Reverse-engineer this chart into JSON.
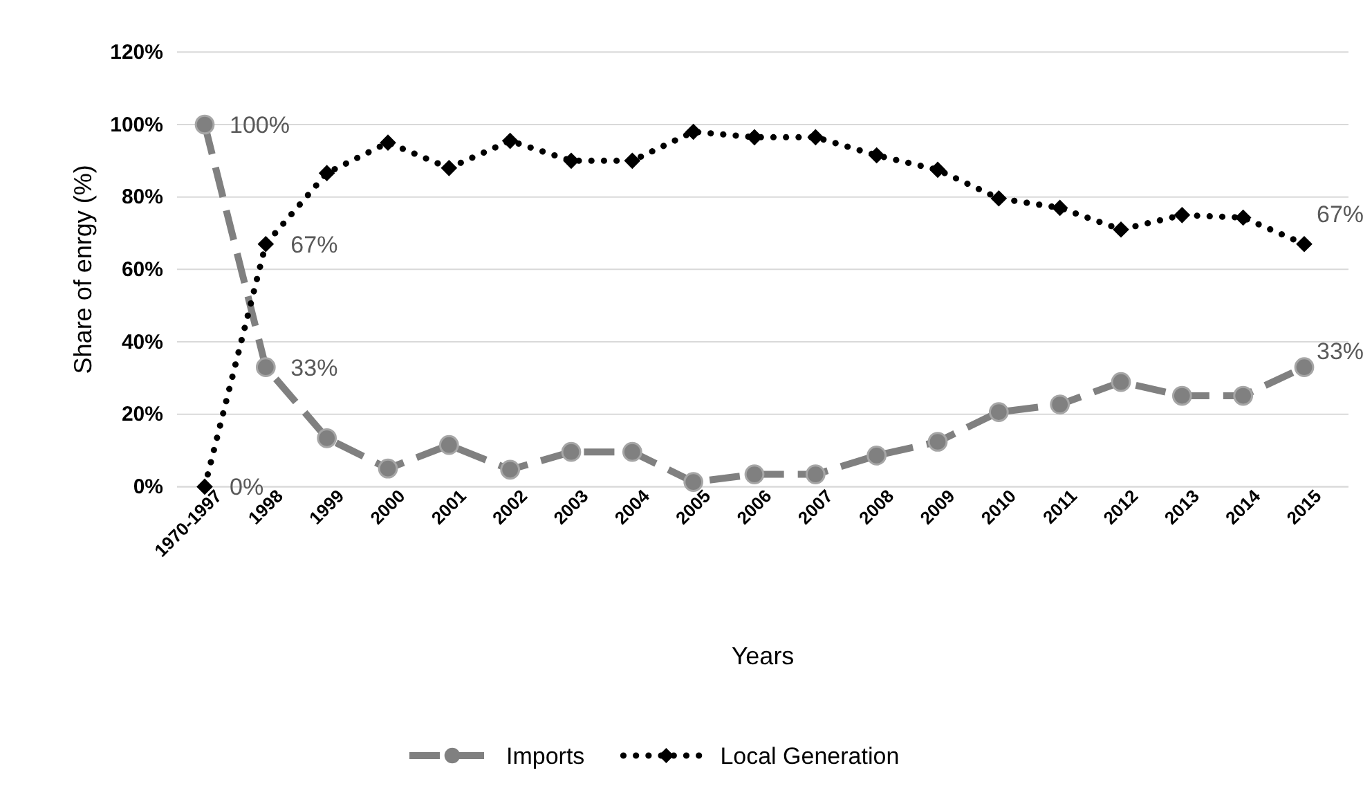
{
  "chart_data": {
    "type": "line",
    "xlabel": "Years",
    "ylabel": "Share of enrgy (%)",
    "categories": [
      "1970-1997",
      "1998",
      "1999",
      "2000",
      "2001",
      "2002",
      "2003",
      "2004",
      "2005",
      "2006",
      "2007",
      "2008",
      "2009",
      "2010",
      "2011",
      "2012",
      "2013",
      "2014",
      "2015"
    ],
    "series": [
      {
        "name": "Imports",
        "color": "#808080",
        "marker": "circle",
        "line_style": "dashed",
        "values": [
          100,
          33,
          13.4,
          5,
          11.5,
          4.7,
          9.6,
          9.6,
          1.3,
          3.4,
          3.4,
          8.6,
          12.4,
          20.6,
          22.7,
          28.9,
          25.1,
          25.1,
          33
        ],
        "value_labels": [
          "100%",
          "33%",
          null,
          null,
          null,
          null,
          null,
          null,
          null,
          null,
          null,
          null,
          null,
          null,
          null,
          null,
          null,
          null,
          "33%"
        ]
      },
      {
        "name": "Local Generation",
        "color": "#000000",
        "marker": "diamond",
        "line_style": "dotted",
        "values": [
          0,
          67,
          86.6,
          95,
          88,
          95.5,
          90,
          90,
          98,
          96.5,
          96.5,
          91.5,
          87.5,
          79.6,
          77,
          71,
          75,
          74.3,
          67
        ],
        "value_labels": [
          "0%",
          "67%",
          null,
          null,
          null,
          null,
          null,
          null,
          null,
          null,
          null,
          null,
          null,
          null,
          null,
          null,
          null,
          null,
          "67%"
        ]
      }
    ],
    "ylim": [
      0,
      120
    ],
    "yticks": [
      {
        "value": 0,
        "label": "0%"
      },
      {
        "value": 20,
        "label": "20%"
      },
      {
        "value": 40,
        "label": "40%"
      },
      {
        "value": 60,
        "label": "60%"
      },
      {
        "value": 80,
        "label": "80%"
      },
      {
        "value": 100,
        "label": "100%"
      },
      {
        "value": 120,
        "label": "120%"
      }
    ],
    "grid": "y",
    "legend": "bottom"
  }
}
